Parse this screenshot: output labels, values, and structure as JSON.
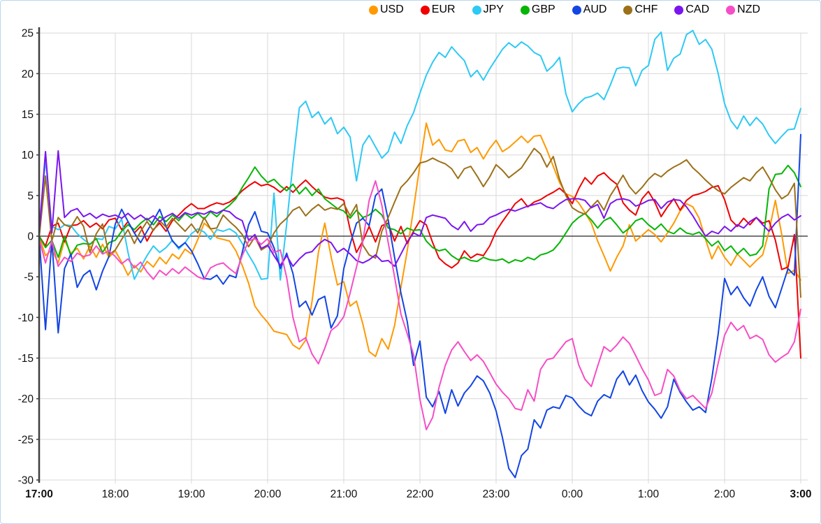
{
  "chart_data": {
    "type": "line",
    "title": "",
    "legend_position": "top",
    "grid": true,
    "x_axis": {
      "start_label": "17:00",
      "end_label": "3:00",
      "ticks": [
        {
          "label": "17:00",
          "min": 0,
          "bold": true
        },
        {
          "label": "18:00",
          "min": 60,
          "bold": false
        },
        {
          "label": "19:00",
          "min": 120,
          "bold": false
        },
        {
          "label": "20:00",
          "min": 180,
          "bold": false
        },
        {
          "label": "21:00",
          "min": 240,
          "bold": false
        },
        {
          "label": "22:00",
          "min": 300,
          "bold": false
        },
        {
          "label": "23:00",
          "min": 360,
          "bold": false
        },
        {
          "label": "0:00",
          "min": 420,
          "bold": false
        },
        {
          "label": "1:00",
          "min": 480,
          "bold": false
        },
        {
          "label": "2:00",
          "min": 540,
          "bold": false
        },
        {
          "label": "3:00",
          "min": 600,
          "bold": true
        }
      ]
    },
    "y_axis": {
      "min": -30,
      "max": 25,
      "step": 5,
      "zero_line": true
    },
    "sample_interval_minutes": 5,
    "colors": {
      "grid": "#d8d8d8",
      "zero_line": "#262626",
      "axis": "#3f3f3f",
      "text": "#111111"
    },
    "series": [
      {
        "name": "USD",
        "color": "#ff9900",
        "values": [
          0,
          -2.4,
          -1.7,
          -3.3,
          -0.5,
          -2.1,
          -1.5,
          -2.8,
          -1.2,
          -2.6,
          -1.0,
          -2.6,
          -1.8,
          -3.2,
          -4.8,
          -3.6,
          -4.4,
          -3.1,
          -3.8,
          -2.6,
          -3.4,
          -2.2,
          -2.8,
          -1.6,
          -2.2,
          -0.4,
          1.6,
          0.9,
          -0.2,
          -0.4,
          -0.6,
          -1.8,
          -3.6,
          -5.8,
          -8.6,
          -9.7,
          -10.6,
          -11.7,
          -11.9,
          -12.1,
          -13.4,
          -13.9,
          -12.8,
          -8.0,
          -2.0,
          1.6,
          -2.5,
          -6.0,
          -5.6,
          -8.6,
          -8.0,
          -10.8,
          -14.2,
          -14.8,
          -12.6,
          -13.9,
          -11.0,
          -6.3,
          -1.8,
          3.4,
          8.8,
          13.9,
          11.2,
          11.9,
          10.6,
          10.4,
          11.7,
          11.9,
          10.3,
          10.9,
          9.5,
          10.8,
          11.8,
          10.4,
          10.9,
          11.6,
          12.3,
          11.5,
          12.3,
          12.4,
          10.6,
          8.6,
          6.6,
          5.2,
          4.9,
          4.1,
          2.9,
          1.6,
          -0.6,
          -2.4,
          -4.3,
          -2.6,
          -1.2,
          1.4,
          -0.6,
          0.1,
          0.8,
          0.2,
          -0.7,
          0.4,
          1.6,
          3.1,
          4.0,
          3.6,
          2.2,
          -0.4,
          -2.8,
          -1.2,
          -2.6,
          -3.6,
          -2.2,
          -3.0,
          -3.8,
          -3.0,
          -2.3,
          0.6,
          4.4,
          0.2,
          -4.6,
          -4.2,
          -5.4
        ]
      },
      {
        "name": "EUR",
        "color": "#f00000",
        "values": [
          0,
          -1.2,
          1.2,
          1.6,
          -0.7,
          1.3,
          1.4,
          1.9,
          1.1,
          1.6,
          0.9,
          2.0,
          2.2,
          0.8,
          1.8,
          0.4,
          1.2,
          -0.6,
          0.8,
          1.6,
          0.6,
          1.9,
          2.6,
          3.4,
          4.0,
          3.4,
          3.4,
          3.8,
          4.1,
          3.9,
          4.2,
          4.8,
          5.6,
          6.2,
          6.7,
          6.2,
          6.4,
          6.0,
          5.4,
          6.1,
          5.4,
          6.2,
          6.9,
          6.1,
          5.4,
          4.8,
          4.6,
          4.7,
          4.4,
          0.8,
          -2.0,
          -0.6,
          1.2,
          -0.7,
          1.3,
          1.6,
          -0.6,
          1.2,
          -0.9,
          0.6,
          1.9,
          1.4,
          -0.8,
          -2.7,
          -3.4,
          -3.9,
          -3.3,
          -1.8,
          -2.7,
          -2.2,
          -2.4,
          -1.2,
          0.6,
          1.8,
          2.9,
          4.0,
          4.6,
          3.6,
          4.2,
          4.5,
          5.0,
          5.4,
          5.9,
          5.2,
          4.0,
          5.8,
          7.2,
          6.4,
          7.4,
          7.8,
          7.0,
          6.4,
          4.1,
          3.2,
          2.6,
          4.6,
          5.5,
          4.2,
          2.4,
          3.6,
          4.6,
          3.2,
          4.4,
          5.0,
          5.2,
          5.5,
          6.0,
          6.2,
          4.5,
          2.0,
          1.2,
          2.2,
          1.4,
          2.3,
          1.6,
          1.9,
          -0.5,
          -4.1,
          -3.8,
          0.2,
          -15.0
        ]
      },
      {
        "name": "JPY",
        "color": "#2ec9f5",
        "values": [
          0,
          9.5,
          1.2,
          0.8,
          1.4,
          1.3,
          0.3,
          -0.4,
          -1.0,
          -0.3,
          -0.4,
          1.2,
          0.9,
          2.1,
          -2.0,
          -5.3,
          -3.8,
          -2.4,
          -1.2,
          -2.0,
          -1.4,
          -0.5,
          -1.6,
          -0.8,
          0.3,
          0.9,
          0.5,
          -0.4,
          0.8,
          0.6,
          0.9,
          0.4,
          -0.9,
          -2.3,
          -3.6,
          -5.3,
          -5.2,
          5.3,
          -5.4,
          1.5,
          9.0,
          15.8,
          16.6,
          14.6,
          15.3,
          13.8,
          14.6,
          12.6,
          13.4,
          12.2,
          6.8,
          11.2,
          12.4,
          11.0,
          9.6,
          10.4,
          12.8,
          11.4,
          13.6,
          15.2,
          17.6,
          19.8,
          21.4,
          22.6,
          22.0,
          23.3,
          22.4,
          21.6,
          19.6,
          20.4,
          19.2,
          20.6,
          21.8,
          23.0,
          23.8,
          23.2,
          23.9,
          23.4,
          22.6,
          22.2,
          20.3,
          21.0,
          22.0,
          17.5,
          15.3,
          16.3,
          17.0,
          17.2,
          17.6,
          16.8,
          18.6,
          20.6,
          20.8,
          20.7,
          18.5,
          20.4,
          21.0,
          24.2,
          25.1,
          20.4,
          21.9,
          22.4,
          24.8,
          25.3,
          23.6,
          24.2,
          23.0,
          20.0,
          16.3,
          14.2,
          13.2,
          14.8,
          13.6,
          14.6,
          13.8,
          12.4,
          11.4,
          12.3,
          13.1,
          13.2,
          15.7
        ]
      },
      {
        "name": "GBP",
        "color": "#06b506",
        "values": [
          0,
          -1.4,
          -0.5,
          -2.6,
          0,
          -2.4,
          -1.1,
          -0.9,
          -1.0,
          -0.3,
          -2.0,
          -0.8,
          -0.5,
          0.6,
          1.4,
          0.8,
          1.6,
          2.2,
          1.4,
          2.4,
          1.8,
          2.6,
          1.9,
          2.8,
          2.2,
          2.8,
          2.1,
          3.0,
          2.4,
          3.2,
          3.8,
          4.6,
          6.0,
          7.2,
          8.5,
          7.4,
          6.6,
          7.0,
          6.2,
          5.6,
          6.4,
          5.2,
          6.0,
          5.0,
          5.8,
          4.6,
          4.0,
          3.4,
          3.1,
          2.2,
          3.2,
          2.3,
          2.6,
          3.3,
          2.6,
          1.0,
          0.8,
          0.3,
          1.0,
          0.7,
          0.8,
          -0.6,
          -1.4,
          -1.8,
          -1.6,
          -2.4,
          -2.9,
          -2.6,
          -3.0,
          -3.1,
          -2.6,
          -2.9,
          -3.0,
          -2.8,
          -3.3,
          -2.9,
          -3.1,
          -2.6,
          -2.9,
          -2.3,
          -2.1,
          -1.7,
          -0.8,
          0.4,
          1.6,
          2.3,
          2.8,
          2.0,
          1.0,
          1.9,
          2.3,
          1.4,
          0.4,
          1.0,
          1.9,
          2.2,
          1.4,
          0.8,
          1.5,
          0.6,
          0.3,
          1.0,
          0.4,
          0.2,
          0.5,
          -0.3,
          -1.2,
          -0.6,
          -1.8,
          -1.2,
          -2.2,
          -1.5,
          -2.4,
          -2.2,
          -1.2,
          5.8,
          7.6,
          7.7,
          8.7,
          7.8,
          6.1
        ]
      },
      {
        "name": "AUD",
        "color": "#1245e4",
        "values": [
          0,
          -11.5,
          -0.5,
          -11.9,
          -4.0,
          -2.2,
          -6.3,
          -4.8,
          -4.2,
          -6.6,
          -4.3,
          -2.5,
          1.5,
          3.3,
          1.8,
          0.4,
          -0.8,
          0.6,
          1.9,
          3.3,
          1.2,
          -0.6,
          -1.4,
          -0.8,
          -1.8,
          -3.4,
          -5.2,
          -5.3,
          -4.8,
          -5.9,
          -4.8,
          -5.1,
          -2.0,
          1.4,
          3.0,
          0.6,
          0.4,
          -1.4,
          -4.0,
          -2.1,
          -4.6,
          -8.7,
          -8.0,
          -9.7,
          -7.8,
          -7.4,
          -11.3,
          -9.8,
          -4.0,
          -1.0,
          1.6,
          2.2,
          1.3,
          5.0,
          5.8,
          2.0,
          -2.6,
          -7.0,
          -10.5,
          -15.9,
          -12.9,
          -19.8,
          -21.0,
          -19.1,
          -21.8,
          -18.9,
          -20.9,
          -19.3,
          -18.4,
          -17.2,
          -17.8,
          -19.3,
          -21.5,
          -24.8,
          -28.6,
          -29.7,
          -27.0,
          -26.2,
          -22.6,
          -23.6,
          -21.4,
          -21.0,
          -21.2,
          -19.6,
          -19.9,
          -20.9,
          -21.7,
          -22.1,
          -20.3,
          -19.5,
          -19.9,
          -17.6,
          -16.6,
          -18.3,
          -17.1,
          -19.0,
          -20.4,
          -21.3,
          -22.4,
          -21.0,
          -17.6,
          -19.2,
          -20.4,
          -21.4,
          -21.0,
          -21.7,
          -17.5,
          -12.0,
          -5.2,
          -7.2,
          -6.2,
          -7.6,
          -8.6,
          -6.6,
          -5.0,
          -7.4,
          -8.8,
          -6.4,
          -4.0,
          -4.8,
          12.5
        ]
      },
      {
        "name": "CHF",
        "color": "#9c7019",
        "values": [
          -0.2,
          7.4,
          -0.6,
          2.3,
          1.4,
          1.1,
          2.4,
          1.2,
          -2.0,
          0.3,
          1.5,
          -2.3,
          -1.7,
          -0.4,
          0.8,
          -0.9,
          0.6,
          1.8,
          0.7,
          1.9,
          1.1,
          2.2,
          1.4,
          0.6,
          1.5,
          0.4,
          2.3,
          0.9,
          1.0,
          2.6,
          1.8,
          1.1,
          0.2,
          -1.3,
          -0.1,
          -1.7,
          -1.2,
          0.4,
          1.5,
          2.2,
          3.2,
          3.6,
          2.5,
          3.3,
          3.9,
          3.2,
          3.5,
          3.3,
          4.0,
          2.5,
          3.9,
          -1.1,
          -2.3,
          -2.7,
          0.6,
          2.3,
          4.2,
          6.0,
          6.8,
          7.8,
          9.0,
          9.2,
          9.6,
          9.2,
          8.9,
          8.3,
          7.1,
          8.3,
          8.6,
          7.4,
          6.1,
          7.3,
          8.8,
          8.1,
          7.2,
          7.8,
          8.4,
          9.6,
          10.8,
          10.1,
          8.5,
          9.8,
          7.0,
          5.0,
          3.5,
          3.0,
          2.7,
          3.6,
          4.4,
          3.2,
          5.0,
          6.2,
          7.5,
          6.1,
          5.2,
          6.0,
          7.0,
          7.7,
          7.3,
          8.0,
          8.5,
          8.9,
          9.4,
          8.4,
          7.7,
          6.9,
          6.2,
          5.6,
          5.2,
          6.0,
          6.6,
          7.2,
          6.8,
          7.8,
          8.5,
          7.2,
          5.7,
          4.6,
          5.1,
          6.5,
          -7.5
        ]
      },
      {
        "name": "CAD",
        "color": "#7b15f0",
        "values": [
          0.3,
          10.4,
          0.4,
          10.5,
          2.3,
          3.1,
          3.4,
          2.4,
          2.8,
          2.2,
          2.7,
          2.4,
          2.6,
          2.2,
          2.8,
          2.1,
          2.6,
          2.0,
          2.5,
          1.8,
          2.4,
          2.8,
          2.2,
          2.9,
          2.6,
          2.9,
          2.7,
          3.1,
          2.8,
          3.2,
          3.0,
          2.3,
          1.9,
          -0.5,
          0.2,
          -1.5,
          -1.1,
          -2.4,
          -3.6,
          -2.4,
          -3.7,
          -2.8,
          -2.1,
          -1.9,
          -1.0,
          -0.4,
          -0.8,
          -2.0,
          -1.5,
          -2.2,
          -3.0,
          -3.3,
          -2.9,
          -2.3,
          -3.1,
          -3.0,
          -3.7,
          -2.2,
          -0.7,
          0.4,
          0.0,
          2.3,
          2.6,
          2.4,
          2.2,
          1.3,
          0.8,
          1.8,
          0.6,
          1.4,
          1.5,
          2.3,
          2.6,
          3.0,
          3.3,
          3.1,
          3.4,
          3.7,
          3.9,
          4.1,
          3.6,
          3.4,
          4.0,
          4.5,
          4.6,
          4.6,
          4.4,
          3.5,
          3.9,
          2.2,
          4.0,
          4.5,
          4.6,
          4.4,
          3.7,
          4.0,
          4.4,
          4.5,
          3.4,
          4.2,
          4.5,
          4.4,
          3.6,
          2.5,
          1.2,
          0.0,
          0.6,
          0.3,
          1.2,
          0.6,
          1.4,
          1.0,
          1.8,
          2.3,
          1.4,
          0.6,
          1.6,
          2.3,
          2.7,
          2.0,
          2.5
        ]
      },
      {
        "name": "NZD",
        "color": "#f64ec6",
        "values": [
          -0.3,
          -3.3,
          -0.6,
          -3.7,
          -2.6,
          -3.1,
          -2.1,
          -2.5,
          -2.3,
          -1.2,
          -2.2,
          -1.8,
          -2.5,
          -3.4,
          -2.8,
          -3.9,
          -3.2,
          -4.4,
          -5.3,
          -4.2,
          -4.8,
          -4.0,
          -4.6,
          -3.8,
          -4.4,
          -5.0,
          -5.3,
          -3.9,
          -3.5,
          -3.3,
          -4.0,
          -4.6,
          -2.4,
          -0.6,
          -0.3,
          -1.0,
          -0.3,
          -2.0,
          -1.7,
          -5.1,
          -10.0,
          -13.0,
          -12.5,
          -14.5,
          -15.7,
          -13.8,
          -11.6,
          -11.0,
          -9.9,
          -7.0,
          -3.8,
          -0.6,
          4.4,
          6.8,
          3.8,
          -0.8,
          -5.0,
          -9.6,
          -12.0,
          -14.6,
          -20.1,
          -23.8,
          -22.3,
          -18.6,
          -15.9,
          -14.0,
          -13.0,
          -14.2,
          -15.3,
          -14.6,
          -15.4,
          -16.8,
          -18.2,
          -19.2,
          -20.0,
          -21.2,
          -21.4,
          -18.9,
          -20.3,
          -16.4,
          -15.2,
          -15.0,
          -14.0,
          -13.0,
          -12.6,
          -15.8,
          -17.6,
          -18.5,
          -16.0,
          -13.6,
          -14.2,
          -13.4,
          -12.4,
          -13.2,
          -14.7,
          -16.3,
          -17.7,
          -19.6,
          -19.3,
          -16.4,
          -17.2,
          -19.0,
          -20.0,
          -19.6,
          -20.4,
          -21.2,
          -19.3,
          -15.6,
          -12.2,
          -10.6,
          -11.6,
          -11.0,
          -12.6,
          -12.2,
          -12.7,
          -14.6,
          -15.5,
          -14.9,
          -14.4,
          -13.0,
          -9.0
        ]
      }
    ]
  }
}
